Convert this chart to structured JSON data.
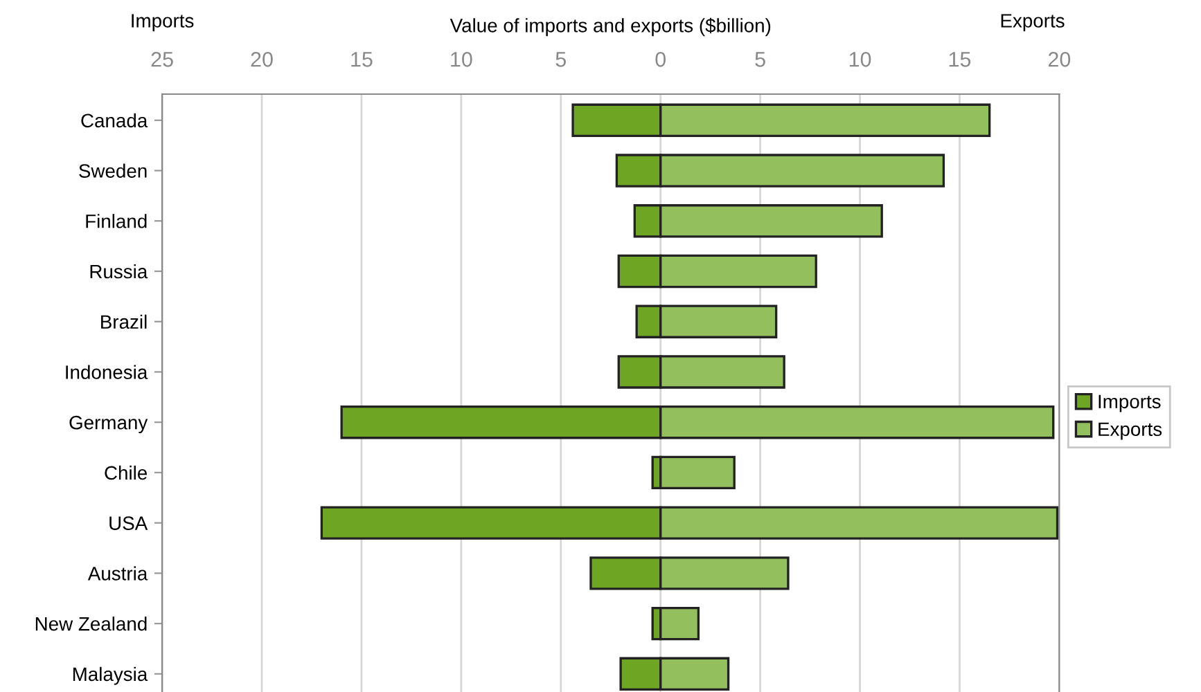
{
  "chart_data": {
    "type": "bar",
    "orientation": "horizontal",
    "stacked": true,
    "xlabel": "Value of imports and exports ($billion)",
    "annotations": [
      "Imports",
      "Exports"
    ],
    "categories": [
      "Canada",
      "Sweden",
      "Finland",
      "Russia",
      "Brazil",
      "Indonesia",
      "Germany",
      "Chile",
      "USA",
      "Austria",
      "New Zealand",
      "Malaysia"
    ],
    "series": [
      {
        "name": "Imports",
        "color": "#6ea522",
        "values": [
          -4.4,
          -2.2,
          -1.3,
          -2.1,
          -1.2,
          -2.1,
          -16.0,
          -0.4,
          -17.0,
          -3.5,
          -0.4,
          -2.0
        ]
      },
      {
        "name": "Exports",
        "color": "#93bf5c",
        "values": [
          16.5,
          14.2,
          11.1,
          7.8,
          5.8,
          6.2,
          19.7,
          3.7,
          19.9,
          6.4,
          1.9,
          3.4
        ]
      }
    ],
    "xlim": [
      -25,
      20
    ],
    "xticks": [
      {
        "value": -25,
        "label": "25"
      },
      {
        "value": -20,
        "label": "20"
      },
      {
        "value": -15,
        "label": "15"
      },
      {
        "value": -10,
        "label": "10"
      },
      {
        "value": -5,
        "label": "5"
      },
      0,
      5,
      10,
      15,
      20
    ],
    "grid": "x",
    "legend": "right"
  }
}
